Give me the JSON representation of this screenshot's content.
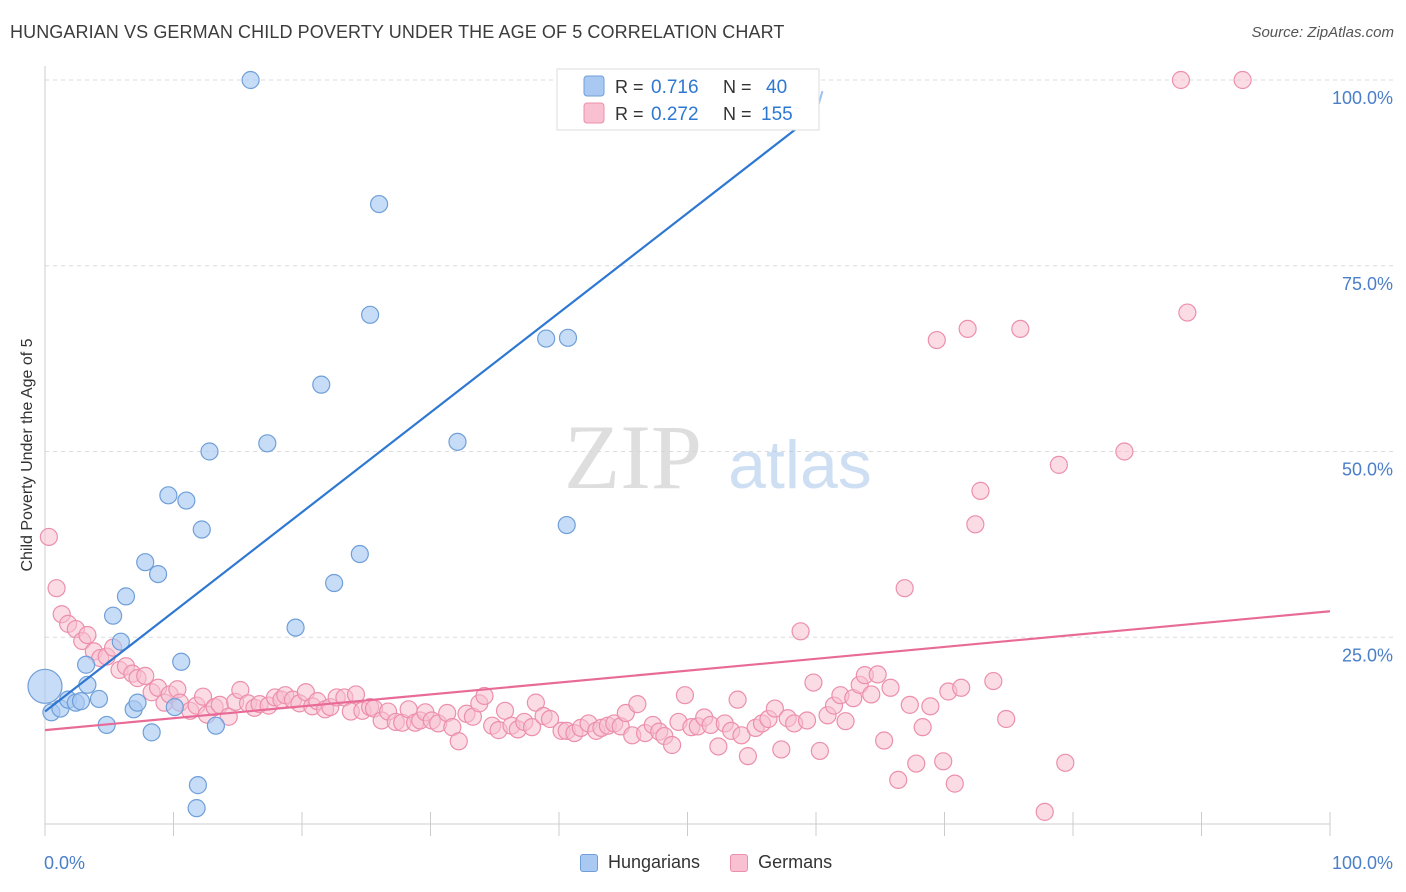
{
  "title": "HUNGARIAN VS GERMAN CHILD POVERTY UNDER THE AGE OF 5 CORRELATION CHART",
  "source": "Source: ZipAtlas.com",
  "watermark": {
    "zip": "ZIP",
    "atlas": "atlas"
  },
  "colors": {
    "hungarian_fill": "#a9c9f2",
    "hungarian_stroke": "#6f9fd8",
    "hungarian_line": "#2f78d2",
    "german_fill": "#f8c0d0",
    "german_stroke": "#ec8fac",
    "german_line": "#e86b97",
    "tick_label": "#4a7fc8"
  },
  "legend_box": {
    "rows": [
      {
        "r_label": "R =",
        "r_value": "0.716",
        "n_label": "N =",
        "n_value": "40"
      },
      {
        "r_label": "R =",
        "r_value": "0.272",
        "n_label": "N =",
        "n_value": "155"
      }
    ]
  },
  "legend_bottom": {
    "hungarians": "Hungarians",
    "germans": "Germans"
  },
  "chart_data": {
    "type": "scatter",
    "title": "HUNGARIAN VS GERMAN CHILD POVERTY UNDER THE AGE OF 5 CORRELATION CHART",
    "xlabel": "",
    "ylabel": "Child Poverty Under the Age of 5",
    "xlim": [
      0,
      100
    ],
    "ylim": [
      0,
      100
    ],
    "x_tick_labels": [
      "0.0%",
      "100.0%"
    ],
    "y_tick_labels": [
      "25.0%",
      "50.0%",
      "75.0%",
      "100.0%"
    ],
    "y_ticks": [
      25,
      50,
      75,
      100
    ],
    "grid": true,
    "legend_position": "top-center",
    "series": [
      {
        "name": "Hungarians",
        "R": 0.716,
        "N": 40,
        "trend": {
          "x0": 0,
          "y0": 15,
          "x1": 60,
          "y1": 95.5
        },
        "trend_ext": {
          "x0": 60,
          "y0": 95.5,
          "x1": 60.5,
          "y1": 98.5
        },
        "points": [
          [
            0,
            18.4
          ],
          [
            0.5,
            14.9
          ],
          [
            1.2,
            15.4
          ],
          [
            1.8,
            16.6
          ],
          [
            2.4,
            16.2
          ],
          [
            2.8,
            16.4
          ],
          [
            3.2,
            21.3
          ],
          [
            3.3,
            18.6
          ],
          [
            4.2,
            16.7
          ],
          [
            4.8,
            13.2
          ],
          [
            5.3,
            27.9
          ],
          [
            5.9,
            24.4
          ],
          [
            6.3,
            30.5
          ],
          [
            6.9,
            15.3
          ],
          [
            7.2,
            16.2
          ],
          [
            7.8,
            35.1
          ],
          [
            8.3,
            12.2
          ],
          [
            8.8,
            33.5
          ],
          [
            9.6,
            44.1
          ],
          [
            10.1,
            15.6
          ],
          [
            10.6,
            21.7
          ],
          [
            11.0,
            43.4
          ],
          [
            11.8,
            2.0
          ],
          [
            11.9,
            5.1
          ],
          [
            12.2,
            39.5
          ],
          [
            12.8,
            50.0
          ],
          [
            13.3,
            13.1
          ],
          [
            16.0,
            100
          ],
          [
            17.3,
            51.1
          ],
          [
            19.5,
            26.3
          ],
          [
            21.5,
            59.0
          ],
          [
            22.5,
            32.3
          ],
          [
            24.5,
            36.2
          ],
          [
            25.3,
            68.4
          ],
          [
            26.0,
            83.3
          ],
          [
            32.1,
            51.3
          ],
          [
            39.0,
            65.2
          ],
          [
            40.6,
            40.1
          ],
          [
            40.7,
            65.3
          ],
          [
            51.5,
            100
          ]
        ]
      },
      {
        "name": "Germans",
        "R": 0.272,
        "N": 155,
        "trend": {
          "x0": 0,
          "y0": 12.5,
          "x1": 100,
          "y1": 28.5
        },
        "points": [
          [
            0.3,
            38.5
          ],
          [
            0.9,
            31.6
          ],
          [
            1.3,
            28.1
          ],
          [
            1.8,
            26.8
          ],
          [
            2.4,
            26.1
          ],
          [
            2.9,
            24.5
          ],
          [
            3.3,
            25.3
          ],
          [
            3.8,
            23.1
          ],
          [
            4.3,
            22.2
          ],
          [
            4.8,
            22.4
          ],
          [
            5.3,
            23.6
          ],
          [
            5.8,
            20.6
          ],
          [
            6.3,
            21.1
          ],
          [
            6.8,
            20.1
          ],
          [
            7.2,
            19.5
          ],
          [
            7.8,
            19.8
          ],
          [
            8.3,
            17.6
          ],
          [
            8.8,
            18.2
          ],
          [
            9.3,
            16.2
          ],
          [
            9.7,
            17.3
          ],
          [
            10.3,
            18.0
          ],
          [
            10.5,
            16.2
          ],
          [
            11.3,
            15.1
          ],
          [
            11.8,
            15.8
          ],
          [
            12.3,
            17.0
          ],
          [
            12.6,
            14.6
          ],
          [
            13.2,
            15.6
          ],
          [
            13.6,
            15.9
          ],
          [
            14.3,
            14.3
          ],
          [
            14.8,
            16.3
          ],
          [
            15.2,
            17.9
          ],
          [
            15.8,
            16.1
          ],
          [
            16.3,
            15.5
          ],
          [
            16.7,
            16.0
          ],
          [
            17.4,
            15.8
          ],
          [
            17.9,
            16.9
          ],
          [
            18.4,
            16.6
          ],
          [
            18.7,
            17.2
          ],
          [
            19.3,
            16.6
          ],
          [
            19.8,
            16.1
          ],
          [
            20.3,
            17.6
          ],
          [
            20.8,
            15.7
          ],
          [
            21.2,
            16.4
          ],
          [
            21.8,
            15.3
          ],
          [
            22.2,
            15.6
          ],
          [
            22.7,
            16.9
          ],
          [
            23.3,
            16.9
          ],
          [
            23.8,
            15.0
          ],
          [
            24.2,
            17.3
          ],
          [
            24.7,
            15.1
          ],
          [
            25.3,
            15.6
          ],
          [
            25.6,
            15.4
          ],
          [
            26.2,
            13.8
          ],
          [
            26.7,
            15.0
          ],
          [
            27.3,
            13.6
          ],
          [
            27.8,
            13.5
          ],
          [
            28.3,
            15.3
          ],
          [
            28.8,
            13.5
          ],
          [
            29.2,
            13.8
          ],
          [
            29.6,
            14.9
          ],
          [
            30.1,
            13.8
          ],
          [
            30.6,
            13.4
          ],
          [
            31.3,
            14.8
          ],
          [
            31.7,
            12.9
          ],
          [
            32.2,
            11.0
          ],
          [
            32.8,
            14.7
          ],
          [
            33.3,
            14.3
          ],
          [
            33.8,
            16.1
          ],
          [
            34.2,
            17.1
          ],
          [
            34.8,
            13.1
          ],
          [
            35.3,
            12.5
          ],
          [
            35.8,
            15.1
          ],
          [
            36.3,
            13.1
          ],
          [
            36.8,
            12.6
          ],
          [
            37.3,
            13.6
          ],
          [
            37.9,
            12.9
          ],
          [
            38.2,
            16.2
          ],
          [
            38.8,
            14.4
          ],
          [
            39.3,
            14.0
          ],
          [
            40.2,
            12.4
          ],
          [
            40.6,
            12.4
          ],
          [
            41.2,
            12.1
          ],
          [
            41.7,
            12.8
          ],
          [
            42.3,
            13.4
          ],
          [
            42.9,
            12.4
          ],
          [
            43.3,
            12.8
          ],
          [
            43.8,
            13.1
          ],
          [
            44.3,
            13.4
          ],
          [
            44.8,
            13.0
          ],
          [
            45.2,
            14.8
          ],
          [
            45.7,
            11.8
          ],
          [
            46.1,
            16.0
          ],
          [
            46.7,
            12.1
          ],
          [
            47.3,
            13.2
          ],
          [
            47.8,
            12.3
          ],
          [
            48.2,
            11.7
          ],
          [
            48.8,
            10.5
          ],
          [
            49.3,
            13.6
          ],
          [
            49.8,
            17.2
          ],
          [
            50.3,
            12.9
          ],
          [
            50.8,
            13.0
          ],
          [
            51.3,
            14.2
          ],
          [
            51.8,
            13.2
          ],
          [
            52.4,
            10.3
          ],
          [
            52.9,
            13.4
          ],
          [
            53.4,
            12.4
          ],
          [
            53.9,
            16.6
          ],
          [
            54.2,
            11.8
          ],
          [
            54.7,
            9.0
          ],
          [
            55.3,
            12.8
          ],
          [
            55.8,
            13.4
          ],
          [
            56.3,
            14.0
          ],
          [
            56.8,
            15.4
          ],
          [
            57.3,
            9.9
          ],
          [
            57.8,
            14.1
          ],
          [
            58.3,
            13.4
          ],
          [
            58.8,
            25.8
          ],
          [
            59.3,
            13.8
          ],
          [
            59.8,
            18.9
          ],
          [
            60.3,
            9.7
          ],
          [
            60.9,
            14.5
          ],
          [
            61.4,
            15.8
          ],
          [
            61.9,
            17.2
          ],
          [
            62.3,
            13.7
          ],
          [
            62.9,
            16.8
          ],
          [
            63.4,
            18.6
          ],
          [
            63.8,
            19.9
          ],
          [
            64.3,
            17.3
          ],
          [
            64.8,
            20.0
          ],
          [
            65.3,
            11.1
          ],
          [
            65.8,
            18.2
          ],
          [
            66.4,
            5.8
          ],
          [
            66.9,
            31.6
          ],
          [
            67.3,
            15.9
          ],
          [
            67.8,
            8.0
          ],
          [
            68.3,
            12.9
          ],
          [
            68.9,
            15.7
          ],
          [
            69.4,
            65.0
          ],
          [
            69.9,
            8.3
          ],
          [
            70.3,
            17.7
          ],
          [
            70.8,
            5.3
          ],
          [
            71.3,
            18.2
          ],
          [
            71.8,
            66.5
          ],
          [
            72.4,
            40.2
          ],
          [
            72.8,
            44.7
          ],
          [
            73.8,
            19.1
          ],
          [
            74.8,
            14.0
          ],
          [
            75.9,
            66.5
          ],
          [
            77.8,
            1.5
          ],
          [
            78.9,
            48.2
          ],
          [
            79.4,
            8.1
          ],
          [
            84.0,
            50.0
          ],
          [
            88.4,
            100
          ],
          [
            88.9,
            68.7
          ],
          [
            93.2,
            100
          ]
        ]
      }
    ]
  }
}
